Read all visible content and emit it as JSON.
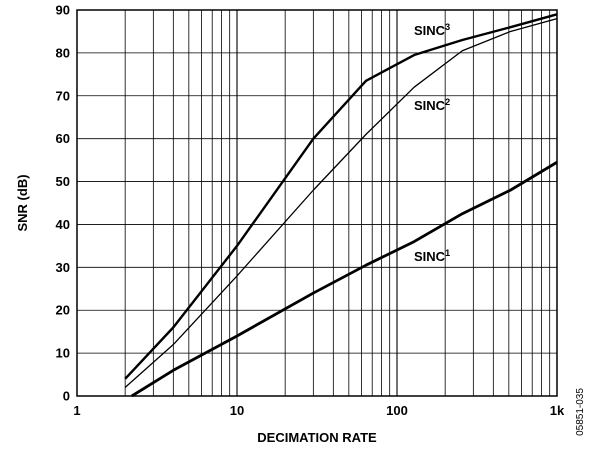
{
  "chart_data": {
    "type": "line",
    "xlabel": "DECIMATION RATE",
    "ylabel": "SNR (dB)",
    "x_scale": "log",
    "xlim": [
      1,
      1000
    ],
    "ylim": [
      0,
      90
    ],
    "grid": true,
    "x_ticks": [
      {
        "value": 1,
        "label": "1"
      },
      {
        "value": 10,
        "label": "10"
      },
      {
        "value": 100,
        "label": "100"
      },
      {
        "value": 1000,
        "label": "1k"
      }
    ],
    "y_ticks": [
      {
        "value": 0,
        "label": "0"
      },
      {
        "value": 10,
        "label": "10"
      },
      {
        "value": 20,
        "label": "20"
      },
      {
        "value": 30,
        "label": "30"
      },
      {
        "value": 40,
        "label": "40"
      },
      {
        "value": 50,
        "label": "50"
      },
      {
        "value": 60,
        "label": "60"
      },
      {
        "value": 70,
        "label": "70"
      },
      {
        "value": 80,
        "label": "80"
      },
      {
        "value": 90,
        "label": "90"
      }
    ],
    "series": [
      {
        "name": "SINC3",
        "label_main": "SINC",
        "label_sup": "3",
        "points": [
          [
            2,
            4
          ],
          [
            4,
            16
          ],
          [
            10,
            35
          ],
          [
            30,
            60
          ],
          [
            64,
            73.5
          ],
          [
            128,
            79.5
          ],
          [
            256,
            83
          ],
          [
            512,
            86
          ],
          [
            1000,
            89
          ]
        ]
      },
      {
        "name": "SINC2",
        "label_main": "SINC",
        "label_sup": "2",
        "points": [
          [
            2,
            2
          ],
          [
            4,
            12
          ],
          [
            10,
            28
          ],
          [
            30,
            48
          ],
          [
            64,
            61
          ],
          [
            128,
            72
          ],
          [
            256,
            80.5
          ],
          [
            512,
            85
          ],
          [
            1000,
            88
          ]
        ]
      },
      {
        "name": "SINC1",
        "label_main": "SINC",
        "label_sup": "1",
        "points": [
          [
            2.2,
            0
          ],
          [
            4,
            6
          ],
          [
            10,
            14
          ],
          [
            30,
            24
          ],
          [
            64,
            30.5
          ],
          [
            128,
            36
          ],
          [
            256,
            42.5
          ],
          [
            512,
            48
          ],
          [
            1000,
            54.5
          ]
        ]
      }
    ]
  },
  "figure_id": "05851-035"
}
